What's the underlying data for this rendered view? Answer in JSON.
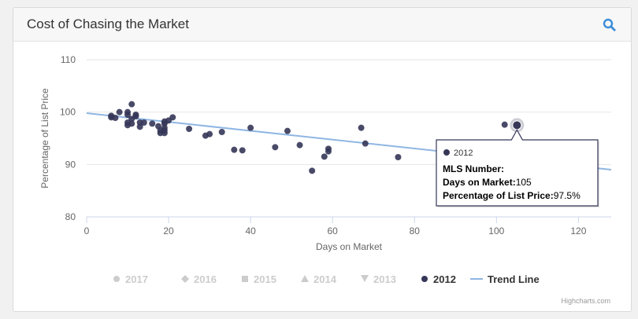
{
  "panel": {
    "title": "Cost of Chasing the Market",
    "search_icon": "search-icon"
  },
  "colors": {
    "series_2012": "#353658",
    "trend": "#8fb6e3",
    "legend_inactive": "#cccccc",
    "accent": "#3b8ed9"
  },
  "chart_data": {
    "type": "scatter",
    "xlabel": "Days on Market",
    "ylabel": "Percentage of List Price",
    "xlim": [
      0,
      128
    ],
    "ylim": [
      80,
      110
    ],
    "x_ticks": [
      0,
      20,
      40,
      60,
      80,
      100,
      120
    ],
    "y_ticks": [
      80,
      90,
      100,
      110
    ],
    "grid": "horizontal",
    "legend_position": "bottom",
    "legend": [
      {
        "name": "2017",
        "symbol": "●",
        "active": false
      },
      {
        "name": "2016",
        "symbol": "◆",
        "active": false
      },
      {
        "name": "2015",
        "symbol": "■",
        "active": false
      },
      {
        "name": "2014",
        "symbol": "▲",
        "active": false
      },
      {
        "name": "2013",
        "symbol": "▼",
        "active": false
      },
      {
        "name": "2012",
        "symbol": "●",
        "active": true
      },
      {
        "name": "Trend Line",
        "symbol": "line",
        "active": true
      }
    ],
    "series": [
      {
        "name": "2012",
        "points": [
          [
            6,
            99.3
          ],
          [
            6,
            99
          ],
          [
            7,
            98.9
          ],
          [
            8,
            100
          ],
          [
            10,
            100
          ],
          [
            10,
            99.5
          ],
          [
            10,
            98
          ],
          [
            10,
            97.5
          ],
          [
            11,
            101.5
          ],
          [
            11,
            98.7
          ],
          [
            11,
            97.8
          ],
          [
            12,
            99.5
          ],
          [
            12,
            99.2
          ],
          [
            13,
            98
          ],
          [
            13,
            97.2
          ],
          [
            14,
            98
          ],
          [
            16,
            97.8
          ],
          [
            17.5,
            97.3
          ],
          [
            18,
            96.5
          ],
          [
            18,
            96
          ],
          [
            19,
            98.2
          ],
          [
            19,
            97.8
          ],
          [
            19,
            97
          ],
          [
            19,
            96.5
          ],
          [
            19,
            96
          ],
          [
            20,
            98.4
          ],
          [
            21,
            99
          ],
          [
            25,
            96.8
          ],
          [
            29,
            95.5
          ],
          [
            30,
            95.8
          ],
          [
            33,
            96.2
          ],
          [
            36,
            92.8
          ],
          [
            38,
            92.7
          ],
          [
            40,
            97
          ],
          [
            46,
            93.3
          ],
          [
            49,
            96.4
          ],
          [
            52,
            93.7
          ],
          [
            55,
            88.8
          ],
          [
            58,
            91.5
          ],
          [
            59,
            93
          ],
          [
            59,
            92.5
          ],
          [
            67,
            97
          ],
          [
            68,
            94
          ],
          [
            76,
            91.4
          ],
          [
            102,
            97.6
          ],
          [
            105,
            97.5
          ]
        ]
      }
    ],
    "trend_line": {
      "name": "Trend Line",
      "start": [
        0,
        99.8
      ],
      "end": [
        128,
        89
      ]
    },
    "tooltip": {
      "series": "2012",
      "point": [
        105,
        97.5
      ],
      "mls_label": "MLS Number",
      "mls_value": "",
      "days_label": "Days on Market",
      "days_value": "105",
      "pct_label": "Percentage of List Price",
      "pct_value": "97.5%"
    },
    "credit": "Highcharts.com"
  }
}
